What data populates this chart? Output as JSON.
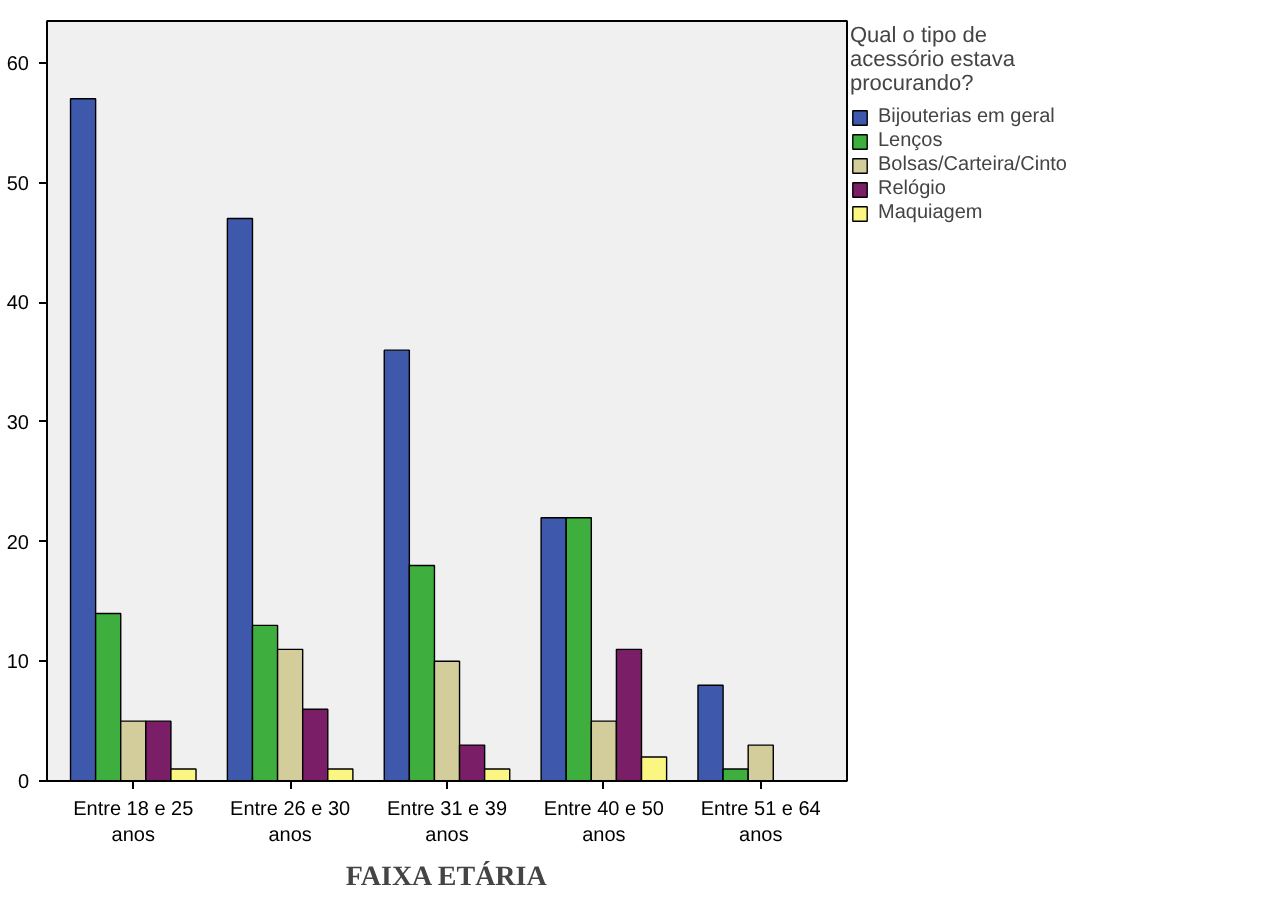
{
  "chart_data": {
    "type": "bar",
    "xlabel": "FAIXA ETÁRIA",
    "legend_title": "Qual o tipo de acessório estava procurando?",
    "categories": [
      "Entre 18 e 25 anos",
      "Entre 26 e 30 anos",
      "Entre 31 e 39 anos",
      "Entre 40 e 50 anos",
      "Entre 51 e 64 anos"
    ],
    "series": [
      {
        "name": "Bijouterias em geral",
        "color": "#3e58ac",
        "values": [
          57,
          47,
          36,
          22,
          8
        ]
      },
      {
        "name": "Lenços",
        "color": "#3eaf3e",
        "values": [
          14,
          13,
          18,
          22,
          1
        ]
      },
      {
        "name": "Bolsas/Carteira/Cinto",
        "color": "#d2cd9b",
        "values": [
          5,
          11,
          10,
          5,
          3
        ]
      },
      {
        "name": "Relógio",
        "color": "#7b1e68",
        "values": [
          5,
          6,
          3,
          11,
          null
        ]
      },
      {
        "name": "Maquiagem",
        "color": "#fbf582",
        "values": [
          1,
          1,
          1,
          2,
          null
        ]
      }
    ],
    "ylim": [
      0,
      63.5
    ],
    "yticks": [
      0,
      10,
      20,
      30,
      40,
      50,
      60
    ],
    "grid": false,
    "legend": "right"
  }
}
